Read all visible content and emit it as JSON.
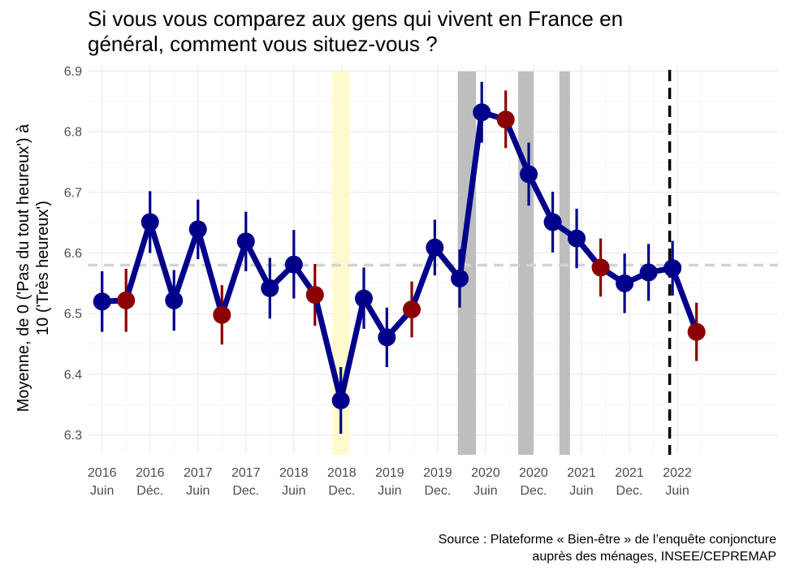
{
  "chart_data": {
    "type": "line",
    "title_lines": [
      "Si vous vous comparez aux gens qui vivent en France en",
      "général, comment vous situez-vous ?"
    ],
    "ylabel_lines": [
      "Moyenne, de 0 ('Pas du tout heureux') à",
      "10 ('Très heureux')"
    ],
    "source_lines": [
      "Source : Plateforme « Bien-être » de l’enquête conjoncture",
      "auprès des ménages, INSEE/CEPREMAP"
    ],
    "ylim": [
      6.27,
      6.91
    ],
    "yticks": [
      6.3,
      6.4,
      6.5,
      6.6,
      6.7,
      6.8,
      6.9
    ],
    "ytick_labels": [
      "6.3",
      "6.4",
      "6.5",
      "6.6",
      "6.7",
      "6.8",
      "6.9"
    ],
    "xlim": [
      2015.85,
      2023.05
    ],
    "xticks": [
      {
        "x": 2016.0,
        "year": "2016",
        "period": "Juin"
      },
      {
        "x": 2016.5,
        "year": "2016",
        "period": "Déc."
      },
      {
        "x": 2017.0,
        "year": "2017",
        "period": "Juin"
      },
      {
        "x": 2017.5,
        "year": "2017",
        "period": "Dec."
      },
      {
        "x": 2018.0,
        "year": "2018",
        "period": "Juin"
      },
      {
        "x": 2018.5,
        "year": "2018",
        "period": "Dec."
      },
      {
        "x": 2019.0,
        "year": "2019",
        "period": "Juin"
      },
      {
        "x": 2019.5,
        "year": "2019",
        "period": "Dec."
      },
      {
        "x": 2020.0,
        "year": "2020",
        "period": "Juin"
      },
      {
        "x": 2020.5,
        "year": "2020",
        "period": "Dec."
      },
      {
        "x": 2021.0,
        "year": "2021",
        "period": "Juin"
      },
      {
        "x": 2021.5,
        "year": "2021",
        "period": "Dec."
      },
      {
        "x": 2022.0,
        "year": "2022",
        "period": "Juin"
      }
    ],
    "reference_line": {
      "y": 6.58,
      "style": "dashed",
      "color": "#d3d3d3"
    },
    "vertical_marker": {
      "x": 2021.92,
      "style": "dashed",
      "color": "#000000"
    },
    "shaded_bands": [
      {
        "x0": 2018.4,
        "x1": 2018.58,
        "color": "#fffacd"
      },
      {
        "x0": 2019.71,
        "x1": 2019.9,
        "color": "#bebebe"
      },
      {
        "x0": 2020.34,
        "x1": 2020.5,
        "color": "#bebebe"
      },
      {
        "x0": 2020.77,
        "x1": 2020.88,
        "color": "#bebebe"
      }
    ],
    "series": [
      {
        "line_color": "#00008b",
        "points": [
          {
            "x": 2016.0,
            "y": 6.52,
            "lo": 6.47,
            "hi": 6.57,
            "color": "#00008b"
          },
          {
            "x": 2016.25,
            "y": 6.522,
            "lo": 6.47,
            "hi": 6.574,
            "color": "#8b0000"
          },
          {
            "x": 2016.5,
            "y": 6.651,
            "lo": 6.6,
            "hi": 6.702,
            "color": "#00008b"
          },
          {
            "x": 2016.75,
            "y": 6.522,
            "lo": 6.472,
            "hi": 6.572,
            "color": "#00008b"
          },
          {
            "x": 2017.0,
            "y": 6.639,
            "lo": 6.59,
            "hi": 6.688,
            "color": "#00008b"
          },
          {
            "x": 2017.25,
            "y": 6.498,
            "lo": 6.449,
            "hi": 6.547,
            "color": "#8b0000"
          },
          {
            "x": 2017.5,
            "y": 6.619,
            "lo": 6.57,
            "hi": 6.668,
            "color": "#00008b"
          },
          {
            "x": 2017.75,
            "y": 6.542,
            "lo": 6.492,
            "hi": 6.592,
            "color": "#00008b"
          },
          {
            "x": 2018.0,
            "y": 6.581,
            "lo": 6.525,
            "hi": 6.638,
            "color": "#00008b"
          },
          {
            "x": 2018.22,
            "y": 6.531,
            "lo": 6.48,
            "hi": 6.582,
            "color": "#8b0000"
          },
          {
            "x": 2018.49,
            "y": 6.357,
            "lo": 6.302,
            "hi": 6.412,
            "color": "#00008b"
          },
          {
            "x": 2018.73,
            "y": 6.525,
            "lo": 6.475,
            "hi": 6.576,
            "color": "#00008b"
          },
          {
            "x": 2018.97,
            "y": 6.461,
            "lo": 6.412,
            "hi": 6.51,
            "color": "#00008b"
          },
          {
            "x": 2019.23,
            "y": 6.507,
            "lo": 6.461,
            "hi": 6.553,
            "color": "#8b0000"
          },
          {
            "x": 2019.47,
            "y": 6.609,
            "lo": 6.563,
            "hi": 6.655,
            "color": "#00008b"
          },
          {
            "x": 2019.73,
            "y": 6.558,
            "lo": 6.51,
            "hi": 6.606,
            "color": "#00008b"
          },
          {
            "x": 2019.96,
            "y": 6.832,
            "lo": 6.782,
            "hi": 6.882,
            "color": "#00008b"
          },
          {
            "x": 2020.21,
            "y": 6.82,
            "lo": 6.773,
            "hi": 6.868,
            "color": "#8b0000"
          },
          {
            "x": 2020.45,
            "y": 6.73,
            "lo": 6.678,
            "hi": 6.782,
            "color": "#00008b"
          },
          {
            "x": 2020.7,
            "y": 6.651,
            "lo": 6.601,
            "hi": 6.701,
            "color": "#00008b"
          },
          {
            "x": 2020.95,
            "y": 6.624,
            "lo": 6.575,
            "hi": 6.673,
            "color": "#00008b"
          },
          {
            "x": 2021.2,
            "y": 6.576,
            "lo": 6.528,
            "hi": 6.624,
            "color": "#8b0000"
          },
          {
            "x": 2021.45,
            "y": 6.55,
            "lo": 6.501,
            "hi": 6.599,
            "color": "#00008b"
          },
          {
            "x": 2021.7,
            "y": 6.568,
            "lo": 6.521,
            "hi": 6.615,
            "color": "#00008b"
          },
          {
            "x": 2021.95,
            "y": 6.575,
            "lo": 6.53,
            "hi": 6.62,
            "color": "#00008b"
          },
          {
            "x": 2022.2,
            "y": 6.47,
            "lo": 6.422,
            "hi": 6.518,
            "color": "#8b0000"
          }
        ]
      }
    ],
    "grid": true
  }
}
